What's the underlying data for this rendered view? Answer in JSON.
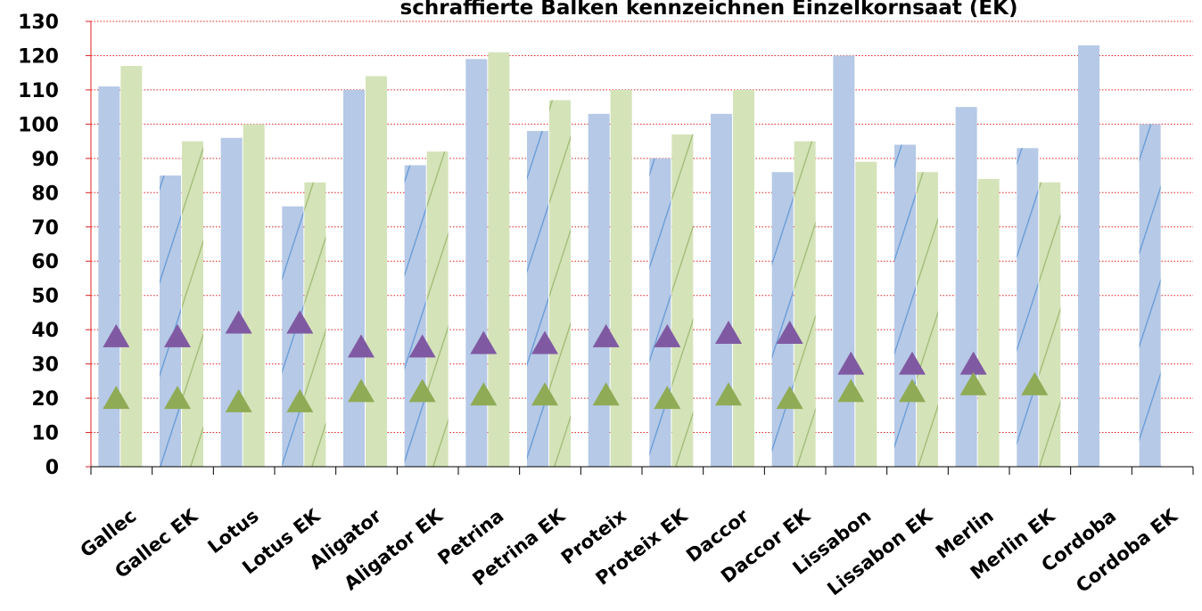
{
  "chart_data": {
    "type": "bar",
    "title": "schraffierte Balken kennzeichnen Einzelkornsaat (EK)",
    "xlabel": "",
    "ylabel": "",
    "ylim": [
      0,
      130
    ],
    "yticks": [
      0,
      10,
      20,
      30,
      40,
      50,
      60,
      70,
      80,
      90,
      100,
      110,
      120,
      130
    ],
    "grid": "horizontal dotted red",
    "legend": "none",
    "categories": [
      "Gallec",
      "Gallec EK",
      "Lotus",
      "Lotus EK",
      "Aligator",
      "Aligator EK",
      "Petrina",
      "Petrina EK",
      "Proteix",
      "Proteix EK",
      "Daccor",
      "Daccor EK",
      "Lissabon",
      "Lissabon EK",
      "Merlin",
      "Merlin EK",
      "Cordoba",
      "Cordoba EK"
    ],
    "hatched_categories": [
      "Gallec EK",
      "Lotus EK",
      "Aligator EK",
      "Petrina EK",
      "Proteix EK",
      "Daccor EK",
      "Lissabon EK",
      "Merlin EK",
      "Cordoba EK"
    ],
    "series": [
      {
        "kind": "bar",
        "color": "#b6c9e6",
        "hatch_color": "#5f97d6",
        "values": [
          111,
          85,
          96,
          76,
          110,
          88,
          119,
          98,
          103,
          90,
          103,
          86,
          120,
          94,
          105,
          93,
          123,
          100
        ]
      },
      {
        "kind": "bar",
        "color": "#d5e3b9",
        "hatch_color": "#9bb870",
        "values": [
          117,
          95,
          100,
          83,
          114,
          92,
          121,
          107,
          110,
          97,
          110,
          95,
          89,
          86,
          84,
          83,
          null,
          null
        ]
      },
      {
        "kind": "marker",
        "marker": "triangle",
        "color": "#7f5aa2",
        "values": [
          38,
          38,
          42,
          42,
          35,
          35,
          36,
          36,
          38,
          38,
          39,
          39,
          30,
          30,
          30,
          null,
          null,
          null
        ]
      },
      {
        "kind": "marker",
        "marker": "triangle",
        "color": "#8fab55",
        "values": [
          20,
          20,
          19,
          19,
          22,
          22,
          21,
          21,
          21,
          20,
          21,
          20,
          22,
          22,
          24,
          24,
          null,
          null
        ]
      }
    ]
  }
}
